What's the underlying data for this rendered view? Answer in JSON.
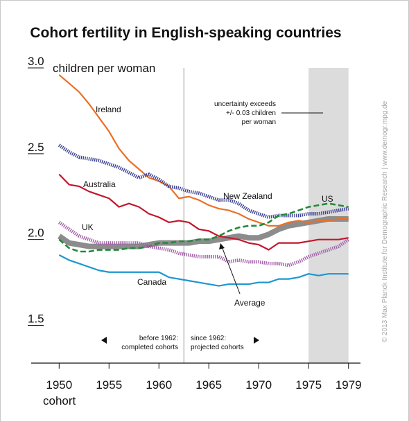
{
  "chart_data": {
    "type": "line",
    "title": "Cohort fertility in English-speaking countries",
    "y_label": "children per woman",
    "x_label": "cohort",
    "x": [
      1950,
      1951,
      1952,
      1953,
      1954,
      1955,
      1956,
      1957,
      1958,
      1959,
      1960,
      1961,
      1962,
      1963,
      1964,
      1965,
      1966,
      1967,
      1968,
      1969,
      1970,
      1971,
      1972,
      1973,
      1974,
      1975,
      1976,
      1977,
      1978,
      1979
    ],
    "xlim": [
      1947.2,
      1980.2
    ],
    "xticks": [
      1950,
      1955,
      1960,
      1965,
      1970,
      1975,
      1979
    ],
    "ylim": [
      1.28,
      3.0
    ],
    "yticks": [
      1.5,
      {
        "value": 2,
        "label": "2.0"
      },
      2.5,
      {
        "value": 3,
        "label": "3.0"
      }
    ],
    "highlight_x": [
      1975,
      1979
    ],
    "divider_x": 1962.5,
    "series": [
      {
        "name": "Average",
        "color": "#8c8c8c",
        "style": "thick",
        "values": [
          2.02,
          1.98,
          1.97,
          1.96,
          1.96,
          1.96,
          1.96,
          1.96,
          1.96,
          1.97,
          1.98,
          1.98,
          1.98,
          1.98,
          1.99,
          1.99,
          2.0,
          2.01,
          2.02,
          2.01,
          2.01,
          2.03,
          2.06,
          2.08,
          2.09,
          2.1,
          2.11,
          2.12,
          2.12,
          2.12
        ]
      },
      {
        "name": "Ireland",
        "color": "#ec6f24",
        "style": "solid",
        "values": [
          2.96,
          2.91,
          2.86,
          2.79,
          2.71,
          2.63,
          2.53,
          2.46,
          2.41,
          2.36,
          2.34,
          2.31,
          2.24,
          2.25,
          2.23,
          2.2,
          2.18,
          2.17,
          2.15,
          2.12,
          2.1,
          2.08,
          2.08,
          2.1,
          2.11,
          2.1,
          2.11,
          2.11,
          2.12,
          2.12
        ]
      },
      {
        "name": "New Zealand",
        "color": "#3b3f91",
        "style": "dotted",
        "values": [
          2.55,
          2.51,
          2.48,
          2.47,
          2.46,
          2.44,
          2.42,
          2.39,
          2.36,
          2.38,
          2.35,
          2.31,
          2.3,
          2.28,
          2.27,
          2.25,
          2.23,
          2.23,
          2.21,
          2.17,
          2.15,
          2.13,
          2.14,
          2.14,
          2.14,
          2.15,
          2.15,
          2.16,
          2.17,
          2.18
        ]
      },
      {
        "name": "US",
        "color": "#22893a",
        "style": "dashed",
        "values": [
          2.0,
          1.95,
          1.93,
          1.93,
          1.94,
          1.94,
          1.94,
          1.95,
          1.95,
          1.96,
          1.98,
          1.98,
          1.99,
          1.99,
          2.0,
          2.0,
          2.02,
          2.05,
          2.07,
          2.08,
          2.08,
          2.1,
          2.14,
          2.15,
          2.17,
          2.19,
          2.2,
          2.21,
          2.2,
          2.19
        ]
      },
      {
        "name": "Australia",
        "color": "#c3162b",
        "style": "solid",
        "values": [
          2.38,
          2.32,
          2.31,
          2.28,
          2.26,
          2.24,
          2.19,
          2.21,
          2.19,
          2.15,
          2.13,
          2.1,
          2.11,
          2.1,
          2.06,
          2.05,
          2.02,
          2.01,
          2.0,
          1.98,
          1.97,
          1.94,
          1.98,
          1.98,
          1.98,
          1.99,
          2.0,
          2.0,
          2.0,
          2.01
        ]
      },
      {
        "name": "UK",
        "color": "#a262a9",
        "style": "dotted",
        "values": [
          2.1,
          2.06,
          2.02,
          2.0,
          1.98,
          1.98,
          1.98,
          1.98,
          1.98,
          1.96,
          1.95,
          1.94,
          1.92,
          1.91,
          1.9,
          1.9,
          1.9,
          1.87,
          1.88,
          1.87,
          1.87,
          1.86,
          1.86,
          1.85,
          1.87,
          1.9,
          1.92,
          1.94,
          1.96,
          2.0
        ]
      },
      {
        "name": "Canada",
        "color": "#1d96d2",
        "style": "solid",
        "values": [
          1.91,
          1.88,
          1.86,
          1.84,
          1.82,
          1.81,
          1.81,
          1.81,
          1.81,
          1.81,
          1.81,
          1.78,
          1.77,
          1.76,
          1.75,
          1.74,
          1.73,
          1.74,
          1.74,
          1.74,
          1.75,
          1.75,
          1.77,
          1.77,
          1.78,
          1.8,
          1.79,
          1.8,
          1.8,
          1.8
        ]
      }
    ],
    "annotations": {
      "uncertainty": [
        "uncertainty exceeds",
        "+/- 0.03 children",
        "per woman"
      ],
      "before": [
        "before 1962:",
        "completed cohorts"
      ],
      "since": [
        "since 1962:",
        "projected cohorts"
      ]
    },
    "credit": "© 2013 Max Planck Institute for Demographic Research | www.demogr.mpg.de"
  }
}
